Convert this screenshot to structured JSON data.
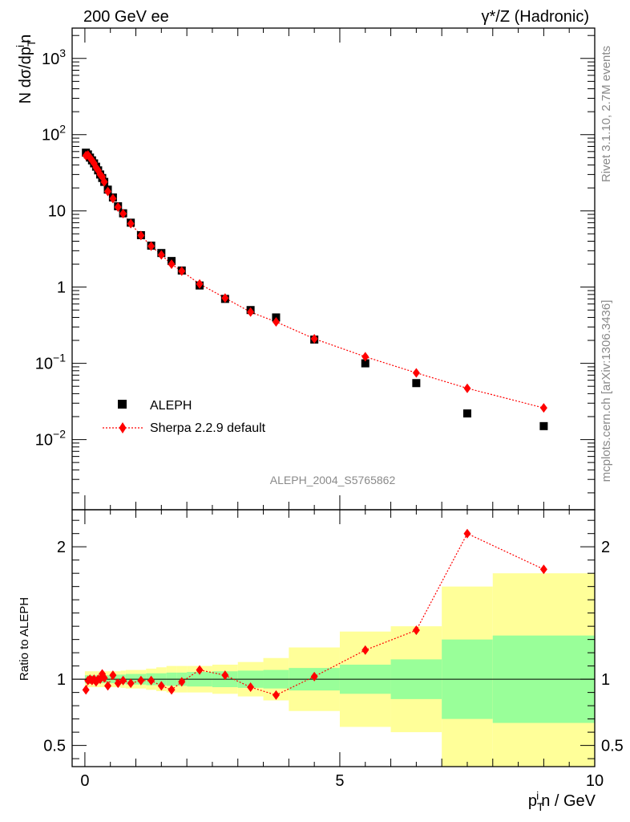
{
  "header": {
    "left": "200 GeV ee",
    "right": "γ*/Z (Hadronic)"
  },
  "side_labels": {
    "rivet": "Rivet 3.1.10,  2.7M events",
    "mcplots": "mcplots.cern.ch [arXiv:1306.3436]"
  },
  "analysis_id": "ALEPH_2004_S5765862",
  "colors": {
    "data": "#000000",
    "mc": "#ff0000",
    "band_inner": "#99ff99",
    "band_outer": "#ffff99"
  },
  "chart_data": [
    {
      "type": "scatter",
      "panel": "main",
      "ylabel": "N dσ/dp^i_T n",
      "yscale": "log",
      "ylim": [
        0.0012,
        2500
      ],
      "xlim": [
        -0.25,
        10
      ],
      "y_tick_labels": [
        "10^-2",
        "10^-1",
        "1",
        "10",
        "10^2",
        "10^3"
      ],
      "legend": {
        "placement": "bottom-left",
        "entries": [
          "ALEPH",
          "Sherpa 2.2.9 default"
        ]
      },
      "series": [
        {
          "name": "ALEPH",
          "marker": "square",
          "x": [
            0.02,
            0.06,
            0.1,
            0.14,
            0.18,
            0.22,
            0.26,
            0.3,
            0.34,
            0.38,
            0.45,
            0.55,
            0.65,
            0.75,
            0.9,
            1.1,
            1.3,
            1.5,
            1.7,
            1.9,
            2.25,
            2.75,
            3.25,
            3.75,
            4.5,
            5.5,
            6.5,
            7.5,
            9.0
          ],
          "y": [
            58,
            55,
            50,
            46,
            42,
            38,
            34,
            30,
            27,
            24,
            19,
            15,
            11.5,
            9.3,
            7.0,
            4.8,
            3.5,
            2.8,
            2.2,
            1.65,
            1.05,
            0.7,
            0.5,
            0.4,
            0.205,
            0.1,
            0.055,
            0.022,
            0.015
          ]
        },
        {
          "name": "Sherpa 2.2.9 default",
          "marker": "diamond",
          "line": "dotted",
          "x": [
            0.02,
            0.06,
            0.1,
            0.14,
            0.18,
            0.22,
            0.26,
            0.3,
            0.34,
            0.38,
            0.45,
            0.55,
            0.65,
            0.75,
            0.9,
            1.1,
            1.3,
            1.5,
            1.7,
            1.9,
            2.25,
            2.75,
            3.25,
            3.75,
            4.5,
            5.5,
            6.5,
            7.5,
            9.0
          ],
          "y": [
            53,
            54,
            50,
            46,
            42,
            37,
            34,
            30,
            28,
            24,
            18,
            14.5,
            11.2,
            9.2,
            6.8,
            4.75,
            3.45,
            2.65,
            2.0,
            1.62,
            1.1,
            0.72,
            0.47,
            0.35,
            0.21,
            0.122,
            0.075,
            0.047,
            0.026
          ]
        }
      ]
    },
    {
      "type": "line",
      "panel": "ratio",
      "ylabel": "Ratio to ALEPH",
      "xlabel": "p^i_T n / GeV",
      "xlim": [
        -0.25,
        10
      ],
      "ylim": [
        0.34,
        2.28
      ],
      "x_ticks": [
        0,
        5,
        10
      ],
      "y_ticks": [
        0.5,
        1,
        2
      ],
      "bins": [
        0,
        0.04,
        0.08,
        0.12,
        0.16,
        0.2,
        0.24,
        0.28,
        0.32,
        0.36,
        0.4,
        0.5,
        0.6,
        0.7,
        0.8,
        1.0,
        1.2,
        1.4,
        1.6,
        1.8,
        2.0,
        2.5,
        3.0,
        3.5,
        4.0,
        5.0,
        6.0,
        7.0,
        8.0,
        10.0
      ],
      "band_inner": [
        0.03,
        0.03,
        0.03,
        0.03,
        0.03,
        0.03,
        0.03,
        0.03,
        0.03,
        0.03,
        0.03,
        0.03,
        0.035,
        0.035,
        0.04,
        0.04,
        0.045,
        0.045,
        0.05,
        0.05,
        0.055,
        0.06,
        0.065,
        0.07,
        0.085,
        0.11,
        0.15,
        0.3,
        0.33
      ],
      "band_outer": [
        0.06,
        0.06,
        0.06,
        0.06,
        0.06,
        0.06,
        0.06,
        0.06,
        0.06,
        0.06,
        0.06,
        0.06,
        0.06,
        0.065,
        0.07,
        0.07,
        0.08,
        0.09,
        0.1,
        0.1,
        0.1,
        0.11,
        0.13,
        0.16,
        0.24,
        0.36,
        0.4,
        0.7,
        0.8
      ],
      "series": [
        {
          "name": "Sherpa 2.2.9 default",
          "x": [
            0.02,
            0.06,
            0.1,
            0.14,
            0.18,
            0.22,
            0.26,
            0.3,
            0.34,
            0.38,
            0.45,
            0.55,
            0.65,
            0.75,
            0.9,
            1.1,
            1.3,
            1.5,
            1.7,
            1.9,
            2.25,
            2.75,
            3.25,
            3.75,
            4.5,
            5.5,
            6.5,
            7.5,
            9.0
          ],
          "y": [
            0.92,
            0.99,
            1.0,
            0.99,
            1.0,
            0.98,
            1.0,
            1.0,
            1.04,
            1.01,
            0.95,
            1.03,
            0.97,
            0.99,
            0.97,
            0.99,
            0.99,
            0.95,
            0.92,
            0.98,
            1.07,
            1.03,
            0.94,
            0.88,
            1.02,
            1.22,
            1.37,
            2.1,
            1.83
          ]
        }
      ]
    }
  ]
}
